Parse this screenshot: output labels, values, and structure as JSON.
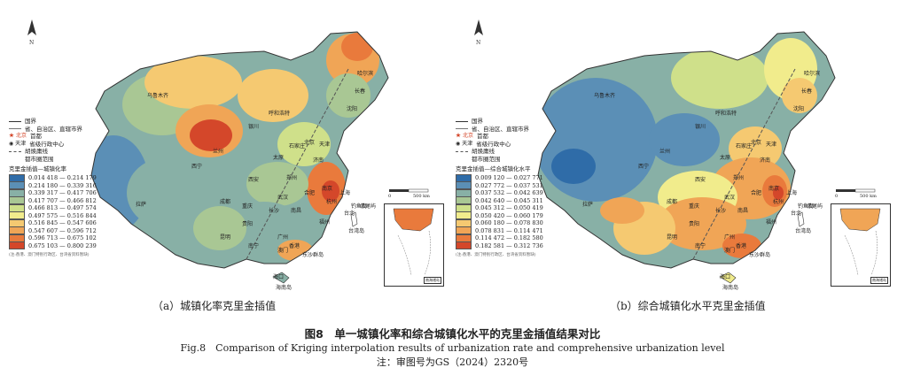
{
  "panel_a": {
    "caption": "（a）城镇化率克里金插值",
    "legend": {
      "boundary_items": [
        "国界",
        "省、自治区、直辖市界",
        "首都",
        "省级行政中心",
        "胡焕庸线",
        "都市圈范围"
      ],
      "capital_symbol": "北京",
      "center_symbol": "天津",
      "title": "克里金插值—城镇化率",
      "classes": [
        {
          "range": "0.014 418 — 0.214 179",
          "color": "#2f6ca8"
        },
        {
          "range": "0.214 180 — 0.339 316",
          "color": "#5b8fb6"
        },
        {
          "range": "0.339 317 — 0.417 706",
          "color": "#88b0a6"
        },
        {
          "range": "0.417 707 — 0.466 812",
          "color": "#a9c794"
        },
        {
          "range": "0.466 813 — 0.497 574",
          "color": "#cfe08a"
        },
        {
          "range": "0.497 575 — 0.516 844",
          "color": "#f1ec8c"
        },
        {
          "range": "0.516 845 — 0.547 606",
          "color": "#f5c971"
        },
        {
          "range": "0.547 607 — 0.596 712",
          "color": "#f0a556"
        },
        {
          "range": "0.596 713 — 0.675 102",
          "color": "#e97a3c"
        },
        {
          "range": "0.675 103 — 0.800 239",
          "color": "#d4472a"
        }
      ],
      "note": "(注:香港、澳门特别行政区、台湾省资料暂缺)"
    },
    "scale": {
      "zero": "0",
      "distance": "500 km"
    },
    "inset_label": "南海诸岛",
    "cities": [
      "乌鲁木齐",
      "拉萨",
      "西宁",
      "兰州",
      "银川",
      "呼和浩特",
      "北京",
      "天津",
      "石家庄",
      "太原",
      "西安",
      "郑州",
      "济南",
      "南京",
      "上海",
      "合肥",
      "武汉",
      "长沙",
      "南昌",
      "杭州",
      "福州",
      "台北",
      "广州",
      "南宁",
      "海口",
      "贵阳",
      "昆明",
      "成都",
      "重庆",
      "哈尔滨",
      "长春",
      "沈阳",
      "香港",
      "澳门",
      "台湾岛",
      "东沙群岛",
      "钓鱼岛",
      "赤尾屿",
      "海南岛"
    ]
  },
  "panel_b": {
    "caption": "（b）综合城镇化水平克里金插值",
    "legend": {
      "boundary_items": [
        "国界",
        "省、自治区、直辖市界",
        "首都",
        "省级行政中心",
        "胡焕庸线",
        "都市圈范围"
      ],
      "capital_symbol": "北京",
      "center_symbol": "天津",
      "title": "克里金插值—综合城镇化水平",
      "classes": [
        {
          "range": "0.009 120 — 0.027 771",
          "color": "#2f6ca8"
        },
        {
          "range": "0.027 772 — 0.037 531",
          "color": "#5b8fb6"
        },
        {
          "range": "0.037 532 — 0.042 639",
          "color": "#88b0a6"
        },
        {
          "range": "0.042 640 — 0.045 311",
          "color": "#a9c794"
        },
        {
          "range": "0.045 312 — 0.050 419",
          "color": "#cfe08a"
        },
        {
          "range": "0.050 420 — 0.060 179",
          "color": "#f1ec8c"
        },
        {
          "range": "0.060 180 — 0.078 830",
          "color": "#f5c971"
        },
        {
          "range": "0.078 831 — 0.114 471",
          "color": "#f0a556"
        },
        {
          "range": "0.114 472 — 0.182 580",
          "color": "#e97a3c"
        },
        {
          "range": "0.182 581 — 0.312 736",
          "color": "#d4472a"
        }
      ],
      "note": "(注:香港、澳门特别行政区、台湾省资料暂缺)"
    },
    "scale": {
      "zero": "0",
      "distance": "500 km"
    },
    "inset_label": "南海诸岛",
    "cities": [
      "乌鲁木齐",
      "拉萨",
      "西宁",
      "兰州",
      "银川",
      "呼和浩特",
      "北京",
      "天津",
      "石家庄",
      "太原",
      "西安",
      "郑州",
      "济南",
      "南京",
      "上海",
      "合肥",
      "武汉",
      "长沙",
      "南昌",
      "杭州",
      "福州",
      "台北",
      "广州",
      "南宁",
      "海口",
      "贵阳",
      "昆明",
      "成都",
      "重庆",
      "哈尔滨",
      "长春",
      "沈阳",
      "香港",
      "澳门",
      "台湾岛",
      "东沙群岛",
      "钓鱼岛",
      "赤尾屿",
      "海南岛"
    ]
  },
  "figure": {
    "title": "图8　单一城镇化率和综合城镇化水平的克里金插值结果对比",
    "title_en": "Fig.8　Comparison of Kriging interpolation results of urbanization rate and comprehensive urbanization level",
    "note": "注：审图号为GS（2024）2320号"
  },
  "colors": {
    "border": "#333333",
    "huline": "#555555",
    "sea": "#dfe9f3"
  }
}
